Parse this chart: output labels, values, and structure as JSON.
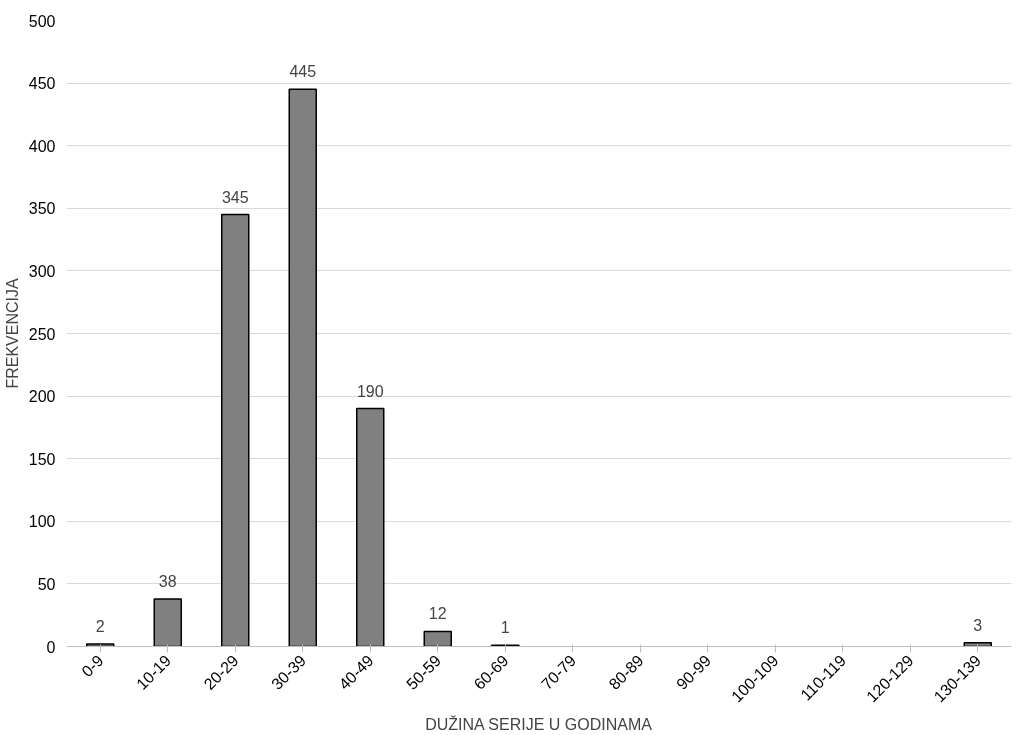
{
  "chart_data": {
    "type": "bar",
    "xlabel": "DUŽINA SERIJE U GODINAMA",
    "ylabel": "FREKVENCIJA",
    "categories": [
      "0-9",
      "10-19",
      "20-29",
      "30-39",
      "40-49",
      "50-59",
      "60-69",
      "70-79",
      "80-89",
      "90-99",
      "100-109",
      "110-119",
      "120-129",
      "130-139"
    ],
    "values": [
      2,
      38,
      345,
      445,
      190,
      12,
      1,
      0,
      0,
      0,
      0,
      0,
      0,
      3
    ],
    "value_labels": [
      "2",
      "38",
      "345",
      "445",
      "190",
      "12",
      "1",
      null,
      null,
      null,
      null,
      null,
      null,
      "3"
    ],
    "color": "#808080",
    "ylim": [
      0,
      500
    ],
    "yticks": [
      0,
      50,
      100,
      150,
      200,
      250,
      300,
      350,
      400,
      450,
      500
    ],
    "grid": "y"
  }
}
